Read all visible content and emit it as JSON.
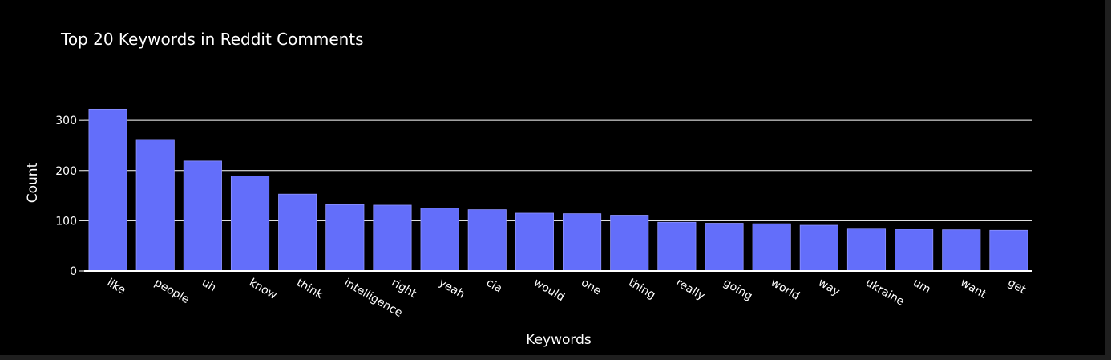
{
  "chart_data": {
    "type": "bar",
    "title": "Top 20 Keywords in Reddit Comments",
    "xlabel": "Keywords",
    "ylabel": "Count",
    "categories": [
      "like",
      "people",
      "uh",
      "know",
      "think",
      "intelligence",
      "right",
      "yeah",
      "cia",
      "would",
      "one",
      "thing",
      "really",
      "going",
      "world",
      "way",
      "ukraine",
      "um",
      "want",
      "get"
    ],
    "values": [
      322,
      262,
      219,
      189,
      153,
      132,
      131,
      125,
      122,
      115,
      114,
      111,
      97,
      95,
      94,
      91,
      85,
      83,
      82,
      81
    ],
    "ylim": [
      0,
      337
    ],
    "yticks": [
      0,
      100,
      200,
      300
    ],
    "grid": true,
    "bar_color": "#636efa",
    "background": "#000000",
    "text_color": "#ffffff"
  }
}
